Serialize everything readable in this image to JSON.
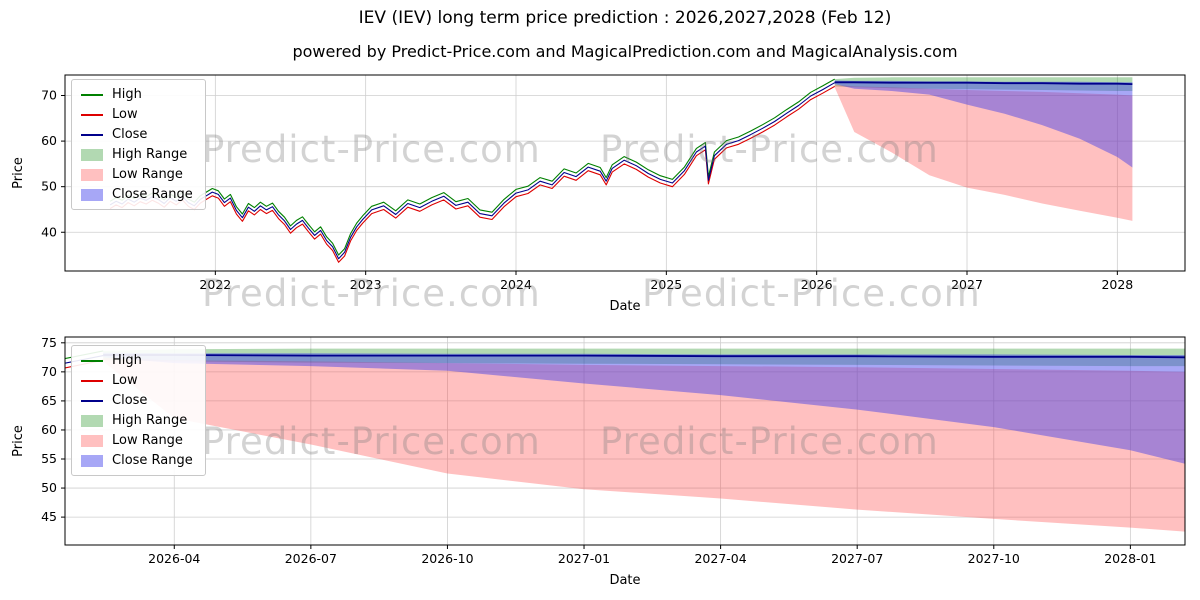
{
  "title": "IEV (IEV) long term price prediction : 2026,2027,2028 (Feb 12)",
  "subtitle": "powered by Predict-Price.com and MagicalPrediction.com and MagicalAnalysis.com",
  "watermark": "Predict-Price.com",
  "colors": {
    "high": "#008000",
    "low": "#dd0000",
    "close": "#00008b",
    "high_range": "rgba(0,128,0,0.30)",
    "low_range": "rgba(255,60,60,0.32)",
    "close_range": "rgba(60,60,235,0.45)"
  },
  "chart_data": [
    {
      "type": "line",
      "title": "",
      "xlabel": "Date",
      "ylabel": "Price",
      "xlim": [
        2021.0,
        2028.45
      ],
      "ylim": [
        31.5,
        74.5
      ],
      "grid": true,
      "legend_position": "upper left",
      "xticks": {
        "values": [
          2022,
          2023,
          2024,
          2025,
          2026,
          2027,
          2028
        ],
        "labels": [
          "2022",
          "2023",
          "2024",
          "2025",
          "2026",
          "2027",
          "2028"
        ]
      },
      "yticks": {
        "values": [
          40,
          50,
          60,
          70
        ],
        "labels": [
          "40",
          "50",
          "60",
          "70"
        ]
      },
      "legend": [
        {
          "label": "High",
          "type": "line",
          "color_key": "high"
        },
        {
          "label": "Low",
          "type": "line",
          "color_key": "low"
        },
        {
          "label": "Close",
          "type": "line",
          "color_key": "close"
        },
        {
          "label": "High Range",
          "type": "patch",
          "color_key": "high_range"
        },
        {
          "label": "Low Range",
          "type": "patch",
          "color_key": "low_range"
        },
        {
          "label": "Close Range",
          "type": "patch",
          "color_key": "close_range"
        }
      ],
      "history": {
        "x": [
          2021.3,
          2021.34,
          2021.38,
          2021.42,
          2021.46,
          2021.5,
          2021.54,
          2021.58,
          2021.62,
          2021.66,
          2021.7,
          2021.74,
          2021.78,
          2021.82,
          2021.86,
          2021.9,
          2021.94,
          2021.98,
          2022.02,
          2022.06,
          2022.1,
          2022.14,
          2022.18,
          2022.22,
          2022.26,
          2022.3,
          2022.34,
          2022.38,
          2022.42,
          2022.46,
          2022.5,
          2022.54,
          2022.58,
          2022.62,
          2022.66,
          2022.7,
          2022.74,
          2022.78,
          2022.82,
          2022.86,
          2022.9,
          2022.94,
          2022.98,
          2023.04,
          2023.12,
          2023.2,
          2023.28,
          2023.36,
          2023.44,
          2023.52,
          2023.6,
          2023.68,
          2023.76,
          2023.84,
          2023.92,
          2024.0,
          2024.08,
          2024.16,
          2024.24,
          2024.32,
          2024.4,
          2024.48,
          2024.56,
          2024.6,
          2024.64,
          2024.72,
          2024.8,
          2024.88,
          2024.96,
          2025.04,
          2025.12,
          2025.2,
          2025.26,
          2025.28,
          2025.32,
          2025.4,
          2025.48,
          2025.56,
          2025.64,
          2025.72,
          2025.8,
          2025.88,
          2025.96,
          2026.04,
          2026.12
        ],
        "high": [
          46.8,
          47.6,
          47.0,
          48.1,
          47.4,
          48.3,
          47.8,
          48.6,
          48.0,
          47.1,
          48.4,
          47.6,
          48.7,
          47.3,
          46.6,
          48.0,
          48.8,
          49.6,
          49.1,
          47.3,
          48.3,
          45.6,
          44.0,
          46.3,
          45.4,
          46.6,
          45.7,
          46.4,
          44.6,
          43.3,
          41.4,
          42.6,
          43.4,
          41.7,
          40.1,
          41.2,
          39.0,
          37.6,
          35.0,
          36.4,
          39.7,
          42.0,
          43.6,
          45.7,
          46.6,
          44.7,
          47.1,
          46.2,
          47.6,
          48.7,
          46.7,
          47.4,
          44.9,
          44.4,
          47.2,
          49.4,
          50.1,
          52.0,
          51.2,
          53.9,
          53.0,
          55.1,
          54.2,
          52.0,
          54.8,
          56.6,
          55.4,
          53.7,
          52.4,
          51.6,
          54.3,
          58.4,
          59.7,
          52.2,
          57.6,
          60.1,
          60.9,
          62.2,
          63.6,
          65.1,
          66.9,
          68.6,
          70.7,
          72.1,
          73.6
        ],
        "low": [
          45.2,
          46.0,
          45.4,
          46.5,
          45.8,
          46.7,
          46.2,
          47.0,
          46.4,
          45.5,
          46.8,
          46.0,
          47.1,
          45.7,
          45.0,
          46.4,
          47.2,
          48.0,
          47.5,
          45.7,
          46.7,
          44.0,
          42.4,
          44.7,
          43.8,
          45.0,
          44.1,
          44.8,
          43.0,
          41.7,
          39.8,
          41.0,
          41.8,
          40.1,
          38.5,
          39.6,
          37.4,
          36.0,
          33.4,
          34.8,
          38.1,
          40.4,
          42.0,
          44.1,
          45.0,
          43.1,
          45.5,
          44.6,
          46.0,
          47.1,
          45.1,
          45.8,
          43.3,
          42.8,
          45.6,
          47.8,
          48.5,
          50.4,
          49.6,
          52.3,
          51.4,
          53.5,
          52.6,
          50.4,
          53.2,
          55.0,
          53.8,
          52.1,
          50.8,
          50.0,
          52.7,
          56.8,
          58.1,
          50.6,
          56.0,
          58.5,
          59.3,
          60.6,
          62.0,
          63.5,
          65.3,
          67.0,
          69.1,
          70.5,
          72.0
        ],
        "close": [
          46.0,
          46.8,
          46.2,
          47.3,
          46.6,
          47.5,
          47.0,
          47.8,
          47.2,
          46.3,
          47.6,
          46.8,
          47.9,
          46.5,
          45.8,
          47.2,
          48.0,
          48.8,
          48.3,
          46.5,
          47.5,
          44.8,
          43.2,
          45.5,
          44.6,
          45.8,
          44.9,
          45.6,
          43.8,
          42.5,
          40.6,
          41.8,
          42.6,
          40.9,
          39.3,
          40.4,
          38.2,
          36.8,
          34.2,
          35.6,
          38.9,
          41.2,
          42.8,
          44.9,
          45.8,
          43.9,
          46.3,
          45.4,
          46.8,
          47.9,
          45.9,
          46.6,
          44.1,
          43.6,
          46.4,
          48.6,
          49.3,
          51.2,
          50.4,
          53.1,
          52.2,
          54.3,
          53.4,
          51.2,
          54.0,
          55.8,
          54.6,
          52.9,
          51.6,
          50.8,
          53.5,
          57.6,
          58.9,
          51.4,
          56.8,
          59.3,
          60.1,
          61.4,
          62.8,
          64.3,
          66.1,
          67.8,
          69.9,
          71.3,
          72.8
        ]
      },
      "forecast": {
        "x": [
          2026.12,
          2026.25,
          2026.5,
          2026.75,
          2027.0,
          2027.25,
          2027.5,
          2027.75,
          2028.0,
          2028.1
        ],
        "high_top": [
          73.6,
          73.9,
          74.0,
          74.0,
          74.0,
          74.0,
          74.0,
          74.0,
          74.0,
          74.0
        ],
        "high_bottom": [
          72.0,
          71.8,
          71.6,
          71.5,
          71.4,
          71.3,
          71.2,
          71.1,
          71.0,
          71.0
        ],
        "close_top": [
          73.3,
          73.2,
          73.2,
          73.1,
          73.1,
          73.0,
          73.0,
          73.0,
          72.9,
          72.9
        ],
        "close_bottom": [
          72.5,
          71.5,
          71.0,
          70.2,
          68.0,
          66.0,
          63.5,
          60.5,
          56.5,
          54.2
        ],
        "close_line": [
          72.9,
          72.9,
          72.8,
          72.8,
          72.8,
          72.7,
          72.7,
          72.6,
          72.6,
          72.5
        ],
        "low_top": [
          72.4,
          72.0,
          71.8,
          71.5,
          71.2,
          71.0,
          70.8,
          70.5,
          70.2,
          70.0
        ],
        "low_bottom": [
          71.8,
          62.0,
          57.5,
          52.5,
          49.8,
          48.2,
          46.3,
          44.7,
          43.2,
          42.5
        ]
      }
    },
    {
      "type": "area",
      "title": "",
      "xlabel": "Date",
      "ylabel": "Price",
      "xlim": [
        2026.05,
        2028.1
      ],
      "ylim": [
        40.2,
        76.0
      ],
      "grid": true,
      "legend_position": "upper left",
      "history_ref": 0,
      "forecast_ref": 0,
      "xticks": {
        "values": [
          2026.25,
          2026.5,
          2026.75,
          2027.0,
          2027.25,
          2027.5,
          2027.75,
          2028.0
        ],
        "labels": [
          "2026-04",
          "2026-07",
          "2026-10",
          "2027-01",
          "2027-04",
          "2027-07",
          "2027-10",
          "2028-01"
        ]
      },
      "yticks": {
        "values": [
          45,
          50,
          55,
          60,
          65,
          70,
          75
        ],
        "labels": [
          "45",
          "50",
          "55",
          "60",
          "65",
          "70",
          "75"
        ]
      },
      "legend": [
        {
          "label": "High",
          "type": "line",
          "color_key": "high"
        },
        {
          "label": "Low",
          "type": "line",
          "color_key": "low"
        },
        {
          "label": "Close",
          "type": "line",
          "color_key": "close"
        },
        {
          "label": "High Range",
          "type": "patch",
          "color_key": "high_range"
        },
        {
          "label": "Low Range",
          "type": "patch",
          "color_key": "low_range"
        },
        {
          "label": "Close Range",
          "type": "patch",
          "color_key": "close_range"
        }
      ]
    }
  ]
}
